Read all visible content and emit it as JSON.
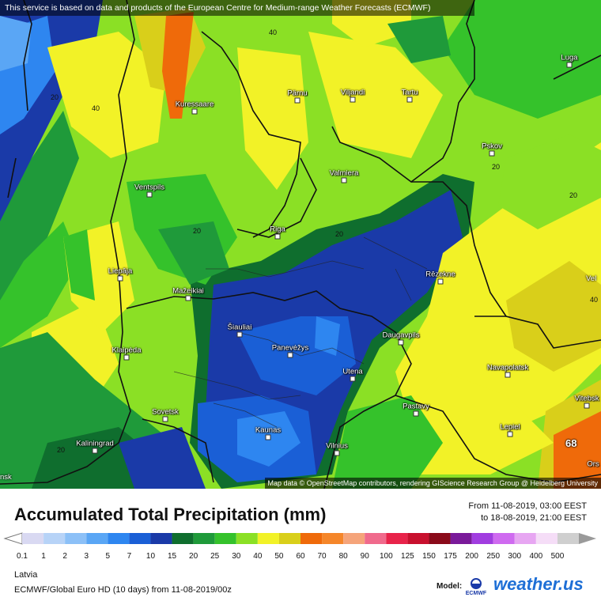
{
  "banner": "This service is based on data and products of the European Centre for Medium-range Weather Forecasts (ECMWF)",
  "attribution": "Map data © OpenStreetMap contributors, rendering GIScience Research Group @ Heidelberg University",
  "cities": [
    {
      "id": "kuressaare",
      "name": "Kuressaare"
    },
    {
      "id": "parnu",
      "name": "Pärnu"
    },
    {
      "id": "viljandi",
      "name": "Viljandi"
    },
    {
      "id": "tartu",
      "name": "Tartu"
    },
    {
      "id": "luga",
      "name": "Luga"
    },
    {
      "id": "pskov",
      "name": "Pskov"
    },
    {
      "id": "valmiera",
      "name": "Valmiera"
    },
    {
      "id": "ventspils",
      "name": "Ventspils"
    },
    {
      "id": "riga",
      "name": "Riga"
    },
    {
      "id": "liepaja",
      "name": "Liepāja"
    },
    {
      "id": "rezekne",
      "name": "Rēzekne"
    },
    {
      "id": "mazeikiai",
      "name": "Mažeikiai"
    },
    {
      "id": "siauliai",
      "name": "Šiauliai"
    },
    {
      "id": "klaipeda",
      "name": "Klaipėda"
    },
    {
      "id": "panevezys",
      "name": "Panevėžys"
    },
    {
      "id": "daugavpils",
      "name": "Daugavpils"
    },
    {
      "id": "utena",
      "name": "Utena"
    },
    {
      "id": "navapolatsk",
      "name": "Navapolatsk"
    },
    {
      "id": "sovetsk",
      "name": "Sovetsk"
    },
    {
      "id": "pastavy",
      "name": "Pastavy"
    },
    {
      "id": "kaunas",
      "name": "Kaunas"
    },
    {
      "id": "lepiel",
      "name": "Lepiel"
    },
    {
      "id": "kaliningrad",
      "name": "Kaliningrad"
    },
    {
      "id": "vilnius",
      "name": "Vilnius"
    },
    {
      "id": "vitebsk",
      "name": "Vitebsk"
    },
    {
      "id": "orsha",
      "name": "Ors"
    }
  ],
  "edge_labels": {
    "left_bottom": "nsk",
    "right_mid": "Vel",
    "right_mid_value": "40"
  },
  "contour_labels": [
    "40",
    "20",
    "40",
    "20",
    "20",
    "20",
    "20",
    "20"
  ],
  "max_value": "68",
  "legend": {
    "title": "Accumulated Total Precipitation (mm)",
    "from_label": "From 11-08-2019, 03:00 EEST",
    "to_label": "to 18-08-2019, 21:00 EEST",
    "scale": [
      {
        "v": "0.1",
        "c": "#d9d9f2"
      },
      {
        "v": "1",
        "c": "#b7d3f7"
      },
      {
        "v": "2",
        "c": "#8cc0f7"
      },
      {
        "v": "3",
        "c": "#5aa6f5"
      },
      {
        "v": "5",
        "c": "#2e86f0"
      },
      {
        "v": "7",
        "c": "#1a5fd6"
      },
      {
        "v": "10",
        "c": "#1a3aa8"
      },
      {
        "v": "15",
        "c": "#0f6e2e"
      },
      {
        "v": "20",
        "c": "#1f9a3a"
      },
      {
        "v": "25",
        "c": "#35c22b"
      },
      {
        "v": "30",
        "c": "#8be025"
      },
      {
        "v": "40",
        "c": "#f2f227"
      },
      {
        "v": "50",
        "c": "#d9cf1a"
      },
      {
        "v": "60",
        "c": "#ef6a0a"
      },
      {
        "v": "70",
        "c": "#f5862a"
      },
      {
        "v": "80",
        "c": "#f5a47a"
      },
      {
        "v": "90",
        "c": "#f06a8c"
      },
      {
        "v": "100",
        "c": "#e8234a"
      },
      {
        "v": "125",
        "c": "#c8102e"
      },
      {
        "v": "150",
        "c": "#8a0a1a"
      },
      {
        "v": "175",
        "c": "#7a1a9a"
      },
      {
        "v": "200",
        "c": "#a13de0"
      },
      {
        "v": "250",
        "c": "#cf6af0"
      },
      {
        "v": "300",
        "c": "#e7a6f2"
      },
      {
        "v": "400",
        "c": "#f5ddf7"
      },
      {
        "v": "500",
        "c": "#cfcfcf"
      }
    ],
    "region": "Latvia",
    "model_line": "ECMWF/Global Euro HD (10 days) from 11-08-2019/00z",
    "model_label": "Model:",
    "ecmwf_text": "ECMWF",
    "brand": "weather.us"
  }
}
